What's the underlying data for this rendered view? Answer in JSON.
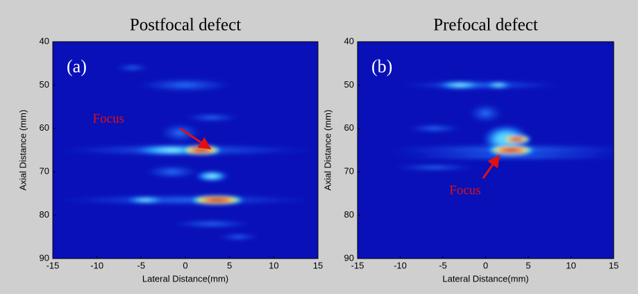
{
  "chart_data": [
    {
      "type": "heatmap",
      "title": "Postfocal defect",
      "panel_label": "(a)",
      "annotation": "Focus",
      "xlabel": "Lateral Distance(mm)",
      "ylabel": "Axial Distance (mm)",
      "xlim": [
        -15,
        15
      ],
      "ylim": [
        90,
        40
      ],
      "xticks": [
        -15,
        -10,
        -5,
        0,
        5,
        10,
        15
      ],
      "yticks": [
        40,
        50,
        60,
        70,
        80,
        90
      ]
    },
    {
      "type": "heatmap",
      "title": "Prefocal defect",
      "panel_label": "(b)",
      "annotation": "Focus",
      "xlabel": "Lateral Distance(mm)",
      "ylabel": "Axial Distance (mm)",
      "xlim": [
        -15,
        15
      ],
      "ylim": [
        90,
        40
      ],
      "xticks": [
        -15,
        -10,
        -5,
        0,
        5,
        10,
        15
      ],
      "yticks": [
        40,
        50,
        60,
        70,
        80,
        90
      ]
    }
  ]
}
